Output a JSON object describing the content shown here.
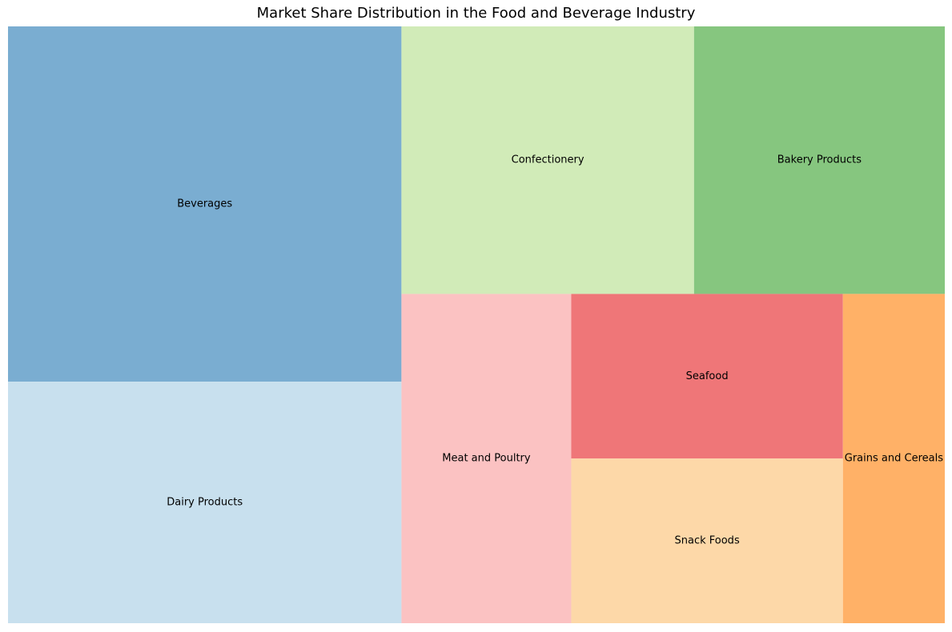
{
  "chart_data": {
    "type": "treemap",
    "title": "Market Share Distribution in the Food and Beverage Industry",
    "categories": [
      "Beverages",
      "Dairy Products",
      "Confectionery",
      "Bakery Products",
      "Meat and Poultry",
      "Seafood",
      "Snack Foods",
      "Grains and Cereals"
    ],
    "values": [
      25,
      17,
      14,
      12,
      10,
      8,
      8,
      6
    ],
    "colors": [
      "#7aadd1",
      "#c8e0ee",
      "#d1ebb8",
      "#86c67f",
      "#fbc2c2",
      "#ef7678",
      "#fdd8a8",
      "#ffb167"
    ]
  }
}
